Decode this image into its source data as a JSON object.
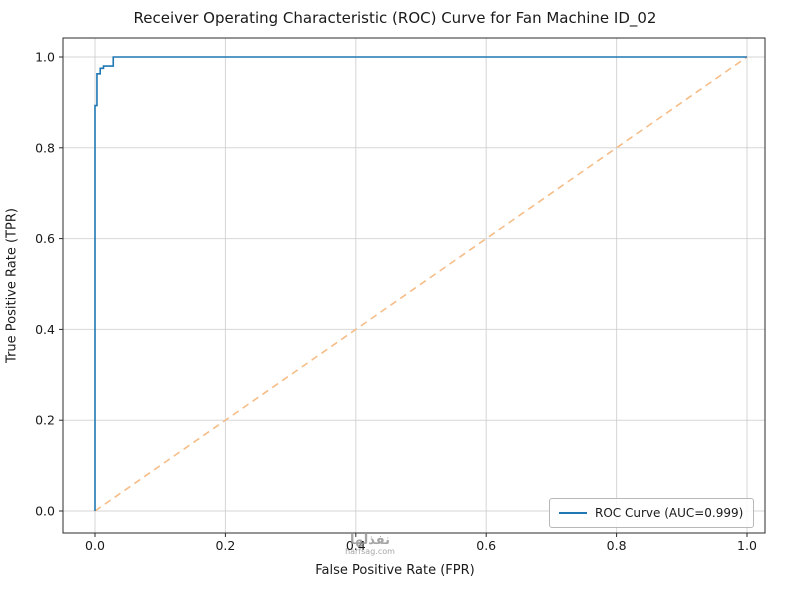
{
  "chart_data": {
    "type": "line",
    "title": "Receiver Operating Characteristic (ROC) Curve for Fan Machine ID_02",
    "xlabel": "False Positive Rate (FPR)",
    "ylabel": "True Positive Rate (TPR)",
    "xlim": [
      -0.05,
      1.05
    ],
    "ylim": [
      -0.05,
      1.05
    ],
    "x_ticks": [
      0.0,
      0.2,
      0.4,
      0.6,
      0.8,
      1.0
    ],
    "y_ticks": [
      0.0,
      0.2,
      0.4,
      0.6,
      0.8,
      1.0
    ],
    "grid": true,
    "legend_position": "lower right",
    "series": [
      {
        "name": "ROC Curve (AUC=0.999)",
        "color": "#1f77b4",
        "style": "solid",
        "in_legend": true,
        "points": [
          [
            0,
            0
          ],
          [
            0,
            0.893
          ],
          [
            0.003,
            0.893
          ],
          [
            0.003,
            0.9
          ],
          [
            0.003,
            0.963
          ],
          [
            0.008,
            0.963
          ],
          [
            0.008,
            0.975
          ],
          [
            0.013,
            0.975
          ],
          [
            0.013,
            0.98
          ],
          [
            0.028,
            0.98
          ],
          [
            0.028,
            1.0
          ],
          [
            1.0,
            1.0
          ]
        ]
      },
      {
        "name": "Chance diagonal",
        "color": "#f5bd88",
        "style": "dashed",
        "in_legend": false,
        "points": [
          [
            0,
            0
          ],
          [
            1.0,
            1.0
          ]
        ]
      }
    ],
    "auc": 0.999
  },
  "legend": {
    "label": "ROC Curve (AUC=0.999)"
  },
  "watermark": {
    "line1": "نفذلها",
    "line2": "harfsag.com"
  },
  "colors": {
    "roc_line": "#1f77b4",
    "diagonal_line": "#f5bd88",
    "grid": "#cccccc",
    "frame": "#2b2b2b",
    "background": "#ffffff"
  }
}
